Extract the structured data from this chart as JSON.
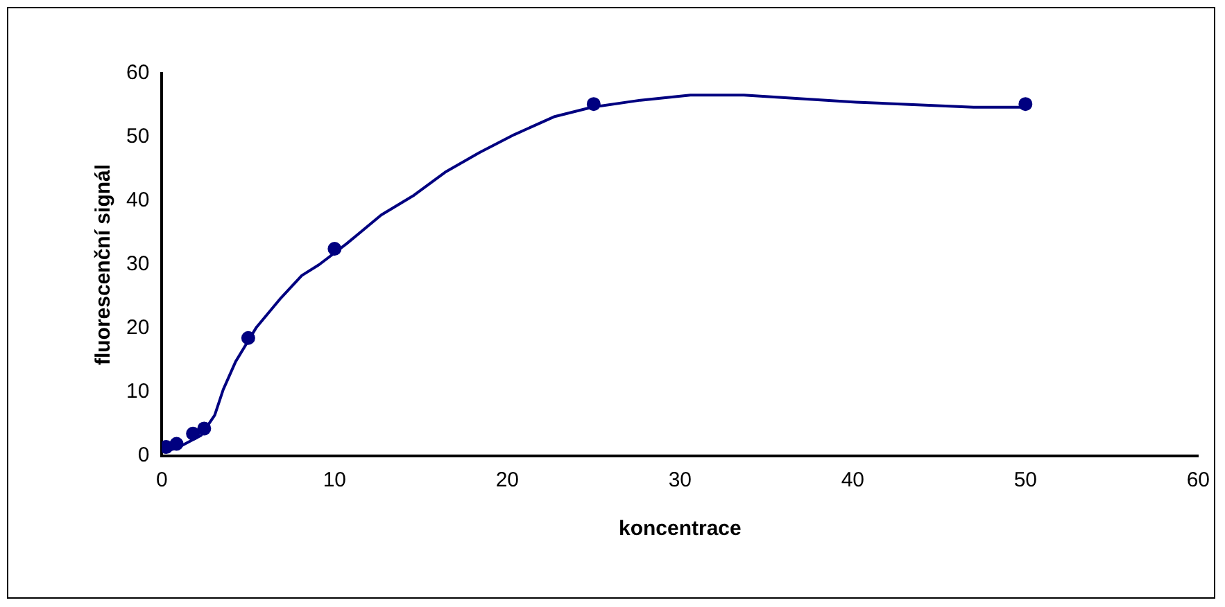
{
  "chart_data": {
    "type": "scatter",
    "xlabel": "koncentrace",
    "ylabel": "fluorescenční signál",
    "xlim": [
      0,
      60
    ],
    "xticks": [
      0,
      10,
      20,
      30,
      40,
      50,
      60
    ],
    "ylim": [
      0,
      60
    ],
    "yticks": [
      0,
      10,
      20,
      30,
      40,
      50,
      60
    ],
    "grid": false,
    "legend": false,
    "series": [
      {
        "type": "scatter",
        "color": "#000080",
        "marker": "circle",
        "x": [
          0.25,
          0.85,
          1.8,
          2.45,
          5,
          10,
          25,
          50
        ],
        "values": [
          1.4,
          1.9,
          3.5,
          4.3,
          18.5,
          32.5,
          55.2,
          55.2
        ]
      },
      {
        "type": "line",
        "color": "#000080",
        "marker": "none",
        "line_style": "solid",
        "x": [
          0.1,
          0.85,
          2.26,
          3.06,
          3.55,
          4.27,
          5.48,
          6.9,
          8.1,
          9.1,
          10.7,
          12.7,
          14.6,
          16.4,
          18.4,
          20.4,
          22.7,
          24.9,
          27.7,
          30.6,
          33.7,
          40.2,
          47,
          49.8
        ],
        "values": [
          0.7,
          1.2,
          3.2,
          6.4,
          10.4,
          14.8,
          20.2,
          24.8,
          28.3,
          30,
          33.3,
          37.8,
          40.9,
          44.5,
          47.6,
          50.4,
          53.2,
          54.7,
          55.8,
          56.6,
          56.6,
          55.5,
          54.7,
          54.7
        ]
      }
    ]
  }
}
